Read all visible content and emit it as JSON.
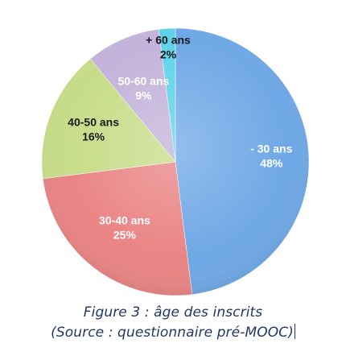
{
  "chart_data": {
    "type": "pie",
    "title": "",
    "slices": [
      {
        "label": "- 30 ans",
        "value": 48,
        "value_label": "48%",
        "color": "#6fa8e6",
        "text_color": "#ffffff"
      },
      {
        "label": "30-40 ans",
        "value": 25,
        "value_label": "25%",
        "color": "#ea8484",
        "text_color": "#ffffff"
      },
      {
        "label": "40-50 ans",
        "value": 16,
        "value_label": "16%",
        "color": "#c7dc88",
        "text_color": "#1a1a1a"
      },
      {
        "label": "50-60 ans",
        "value": 9,
        "value_label": "9%",
        "color": "#c3b2da",
        "text_color": "#ffffff"
      },
      {
        "label": "+ 60 ans",
        "value": 2,
        "value_label": "2%",
        "color": "#5fd2e8",
        "text_color": "#1a1a1a"
      }
    ],
    "start": "top",
    "direction": "clockwise",
    "legend": "none"
  },
  "caption": {
    "line1": "Figure 3 : âge des inscrits",
    "line2": "(Source : questionnaire pré-MOOC)"
  }
}
